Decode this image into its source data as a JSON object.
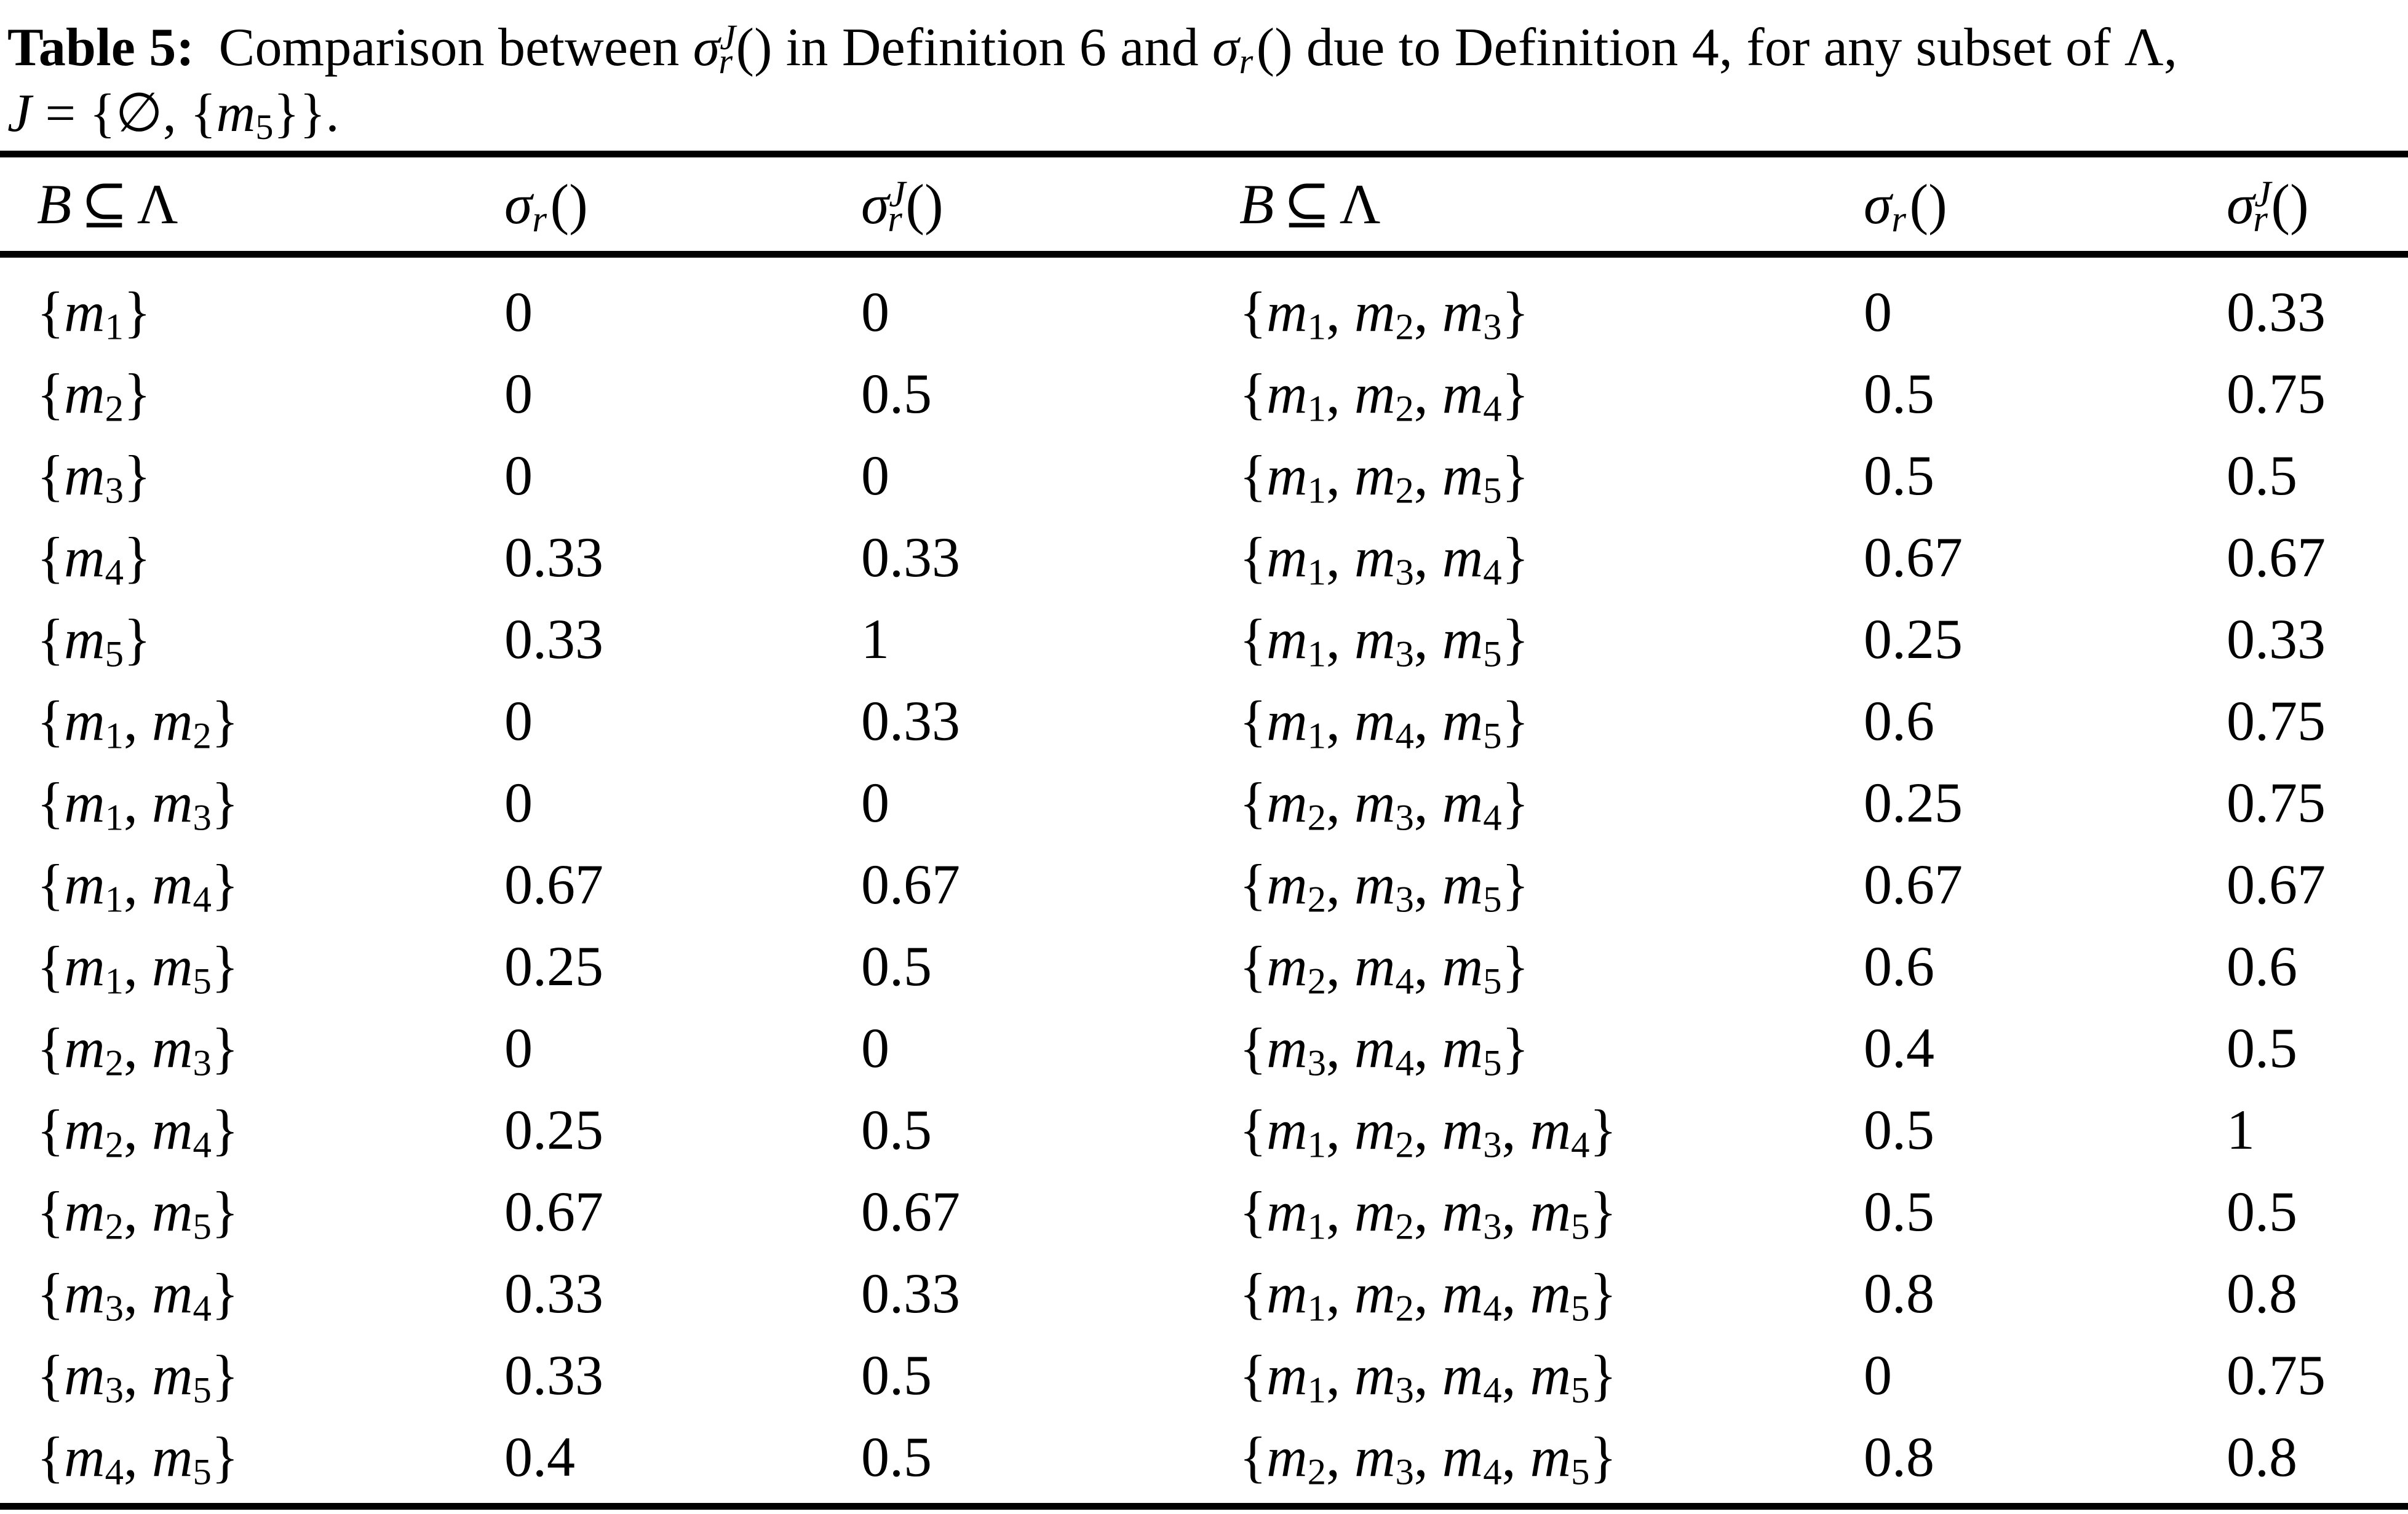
{
  "page": {
    "background": "#ffffff",
    "text_color": "#000000",
    "rule_color": "#000000"
  },
  "math": {
    "sigma": "σ",
    "r": "r",
    "J": "J",
    "m": "m",
    "parens": "()"
  },
  "caption": {
    "label": "Table 5:",
    "segments": [
      {
        "t": "text",
        "v": "Comparison between "
      },
      {
        "t": "sigmaJ"
      },
      {
        "t": "text",
        "v": " in Definition 6 and "
      },
      {
        "t": "sigma"
      },
      {
        "t": "text",
        "v": " due to Definition 4, for any subset of Λ,"
      },
      {
        "t": "break"
      },
      {
        "t": "scriptJ"
      },
      {
        "t": "text",
        "v": " = {∅, {"
      },
      {
        "t": "m",
        "v": 5
      },
      {
        "t": "text",
        "v": "}}."
      }
    ]
  },
  "header": {
    "b": "B",
    "subset": "⊆",
    "lambda": "Λ"
  },
  "table": {
    "rows": [
      {
        "l": {
          "set": [
            1
          ],
          "sr": "0",
          "srj": "0"
        },
        "r": {
          "set": [
            1,
            2,
            3
          ],
          "sr": "0",
          "srj": "0.33"
        }
      },
      {
        "l": {
          "set": [
            2
          ],
          "sr": "0",
          "srj": "0.5"
        },
        "r": {
          "set": [
            1,
            2,
            4
          ],
          "sr": "0.5",
          "srj": "0.75"
        }
      },
      {
        "l": {
          "set": [
            3
          ],
          "sr": "0",
          "srj": "0"
        },
        "r": {
          "set": [
            1,
            2,
            5
          ],
          "sr": "0.5",
          "srj": "0.5"
        }
      },
      {
        "l": {
          "set": [
            4
          ],
          "sr": "0.33",
          "srj": "0.33"
        },
        "r": {
          "set": [
            1,
            3,
            4
          ],
          "sr": "0.67",
          "srj": "0.67"
        }
      },
      {
        "l": {
          "set": [
            5
          ],
          "sr": "0.33",
          "srj": "1"
        },
        "r": {
          "set": [
            1,
            3,
            5
          ],
          "sr": "0.25",
          "srj": "0.33"
        }
      },
      {
        "l": {
          "set": [
            1,
            2
          ],
          "sr": "0",
          "srj": "0.33"
        },
        "r": {
          "set": [
            1,
            4,
            5
          ],
          "sr": "0.6",
          "srj": "0.75"
        }
      },
      {
        "l": {
          "set": [
            1,
            3
          ],
          "sr": "0",
          "srj": "0"
        },
        "r": {
          "set": [
            2,
            3,
            4
          ],
          "sr": "0.25",
          "srj": "0.75"
        }
      },
      {
        "l": {
          "set": [
            1,
            4
          ],
          "sr": "0.67",
          "srj": "0.67"
        },
        "r": {
          "set": [
            2,
            3,
            5
          ],
          "sr": "0.67",
          "srj": "0.67"
        }
      },
      {
        "l": {
          "set": [
            1,
            5
          ],
          "sr": "0.25",
          "srj": "0.5"
        },
        "r": {
          "set": [
            2,
            4,
            5
          ],
          "sr": "0.6",
          "srj": "0.6"
        }
      },
      {
        "l": {
          "set": [
            2,
            3
          ],
          "sr": "0",
          "srj": "0"
        },
        "r": {
          "set": [
            3,
            4,
            5
          ],
          "sr": "0.4",
          "srj": "0.5"
        }
      },
      {
        "l": {
          "set": [
            2,
            4
          ],
          "sr": "0.25",
          "srj": "0.5"
        },
        "r": {
          "set": [
            1,
            2,
            3,
            4
          ],
          "sr": "0.5",
          "srj": "1"
        }
      },
      {
        "l": {
          "set": [
            2,
            5
          ],
          "sr": "0.67",
          "srj": "0.67"
        },
        "r": {
          "set": [
            1,
            2,
            3,
            5
          ],
          "sr": "0.5",
          "srj": "0.5"
        }
      },
      {
        "l": {
          "set": [
            3,
            4
          ],
          "sr": "0.33",
          "srj": "0.33"
        },
        "r": {
          "set": [
            1,
            2,
            4,
            5
          ],
          "sr": "0.8",
          "srj": "0.8"
        }
      },
      {
        "l": {
          "set": [
            3,
            5
          ],
          "sr": "0.33",
          "srj": "0.5"
        },
        "r": {
          "set": [
            1,
            3,
            4,
            5
          ],
          "sr": "0",
          "srj": "0.75"
        }
      },
      {
        "l": {
          "set": [
            4,
            5
          ],
          "sr": "0.4",
          "srj": "0.5"
        },
        "r": {
          "set": [
            2,
            3,
            4,
            5
          ],
          "sr": "0.8",
          "srj": "0.8"
        }
      }
    ]
  }
}
